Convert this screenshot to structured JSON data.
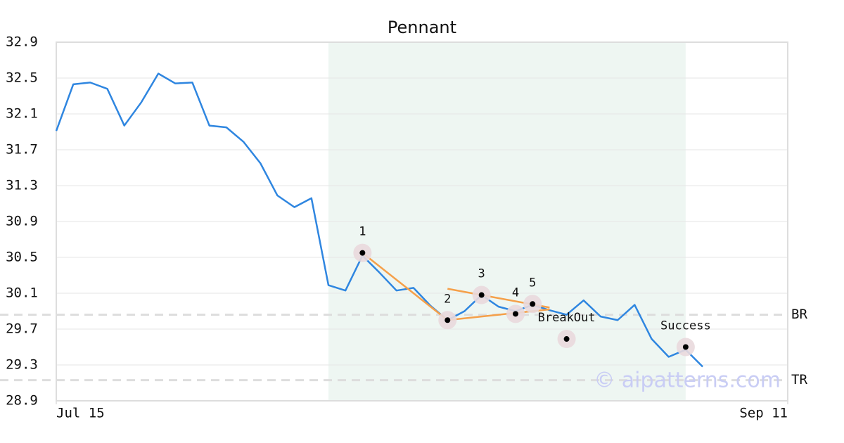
{
  "chart_data": {
    "type": "line",
    "title": "Pennant",
    "x": [
      0,
      1,
      2,
      3,
      4,
      5,
      6,
      7,
      8,
      9,
      10,
      11,
      12,
      13,
      14,
      15,
      16,
      17,
      18,
      19,
      20,
      21,
      22,
      23,
      24,
      25,
      26,
      27,
      28,
      29,
      30,
      31,
      32,
      33,
      34,
      35,
      36,
      37,
      38
    ],
    "values": [
      31.91,
      32.43,
      32.45,
      32.38,
      31.97,
      32.23,
      32.55,
      32.44,
      32.45,
      31.97,
      31.95,
      31.79,
      31.55,
      31.19,
      31.06,
      31.16,
      30.19,
      30.13,
      30.52,
      30.33,
      30.13,
      30.16,
      29.96,
      29.8,
      29.9,
      30.08,
      29.95,
      29.9,
      29.97,
      29.91,
      29.86,
      30.02,
      29.84,
      29.8,
      29.97,
      29.59,
      29.39,
      29.47,
      29.28
    ],
    "color": "#2f86e0",
    "xlim": [
      0,
      43
    ],
    "xticks": [
      {
        "value": 0,
        "label": "Jul 15"
      },
      {
        "value": 43,
        "label": "Sep 11"
      }
    ],
    "ylim": [
      28.9,
      32.9
    ],
    "yticks": [
      28.9,
      29.3,
      29.7,
      30.1,
      30.5,
      30.9,
      31.3,
      31.7,
      32.1,
      32.5,
      32.9
    ],
    "grid": true,
    "highlight_range": [
      16,
      37
    ],
    "highlight_color": "#eef6f2",
    "pattern_points": [
      {
        "label": "1",
        "x": 18,
        "y": 30.55
      },
      {
        "label": "2",
        "x": 23,
        "y": 29.8
      },
      {
        "label": "3",
        "x": 25,
        "y": 30.08
      },
      {
        "label": "4",
        "x": 27,
        "y": 29.87
      },
      {
        "label": "5",
        "x": 28,
        "y": 29.98
      },
      {
        "label": "BreakOut",
        "x": 30,
        "y": 29.59
      },
      {
        "label": "Success",
        "x": 37,
        "y": 29.5
      }
    ],
    "trendline_color": "#f5a04a",
    "trendlines": [
      {
        "x": [
          18,
          23
        ],
        "y": [
          30.55,
          29.8
        ]
      },
      {
        "x": [
          23,
          29
        ],
        "y": [
          29.8,
          29.92
        ]
      },
      {
        "x": [
          23,
          29
        ],
        "y": [
          30.15,
          29.94
        ]
      }
    ],
    "levels": [
      {
        "label": "BR",
        "value": 29.86
      },
      {
        "label": "TR",
        "value": 29.13
      }
    ],
    "watermark": "© aipatterns.com"
  }
}
